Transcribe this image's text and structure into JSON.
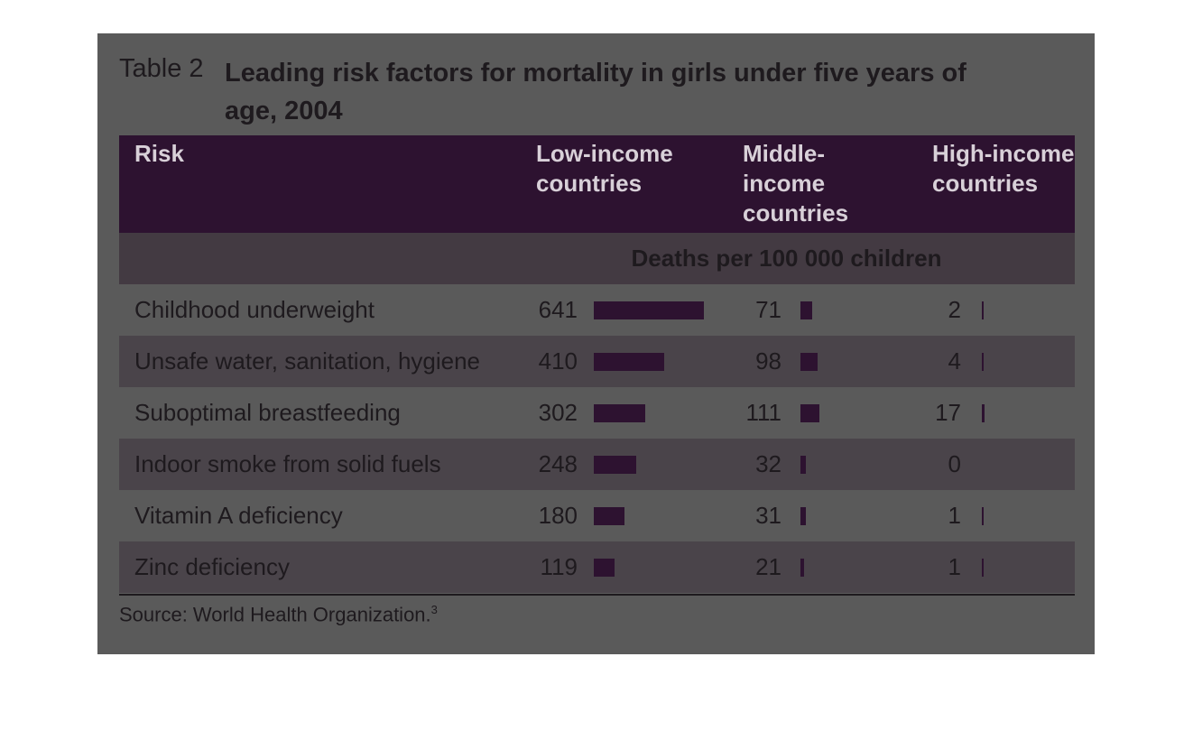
{
  "title": {
    "label": "Table 2",
    "text": "Leading risk factors for mortality in girls under five years of age, 2004"
  },
  "table": {
    "columns": [
      "Risk",
      "Low-income countries",
      "Middle-income countries",
      "High-income countries"
    ],
    "unit": "Deaths per 100 000 children",
    "rows": [
      [
        "Childhood underweight",
        641,
        71,
        2
      ],
      [
        "Unsafe water, sanitation, hygiene",
        410,
        98,
        4
      ],
      [
        "Suboptimal breastfeeding",
        302,
        111,
        17
      ],
      [
        "Indoor smoke from solid fuels",
        248,
        32,
        0
      ],
      [
        "Vitamin A deficiency",
        180,
        31,
        1
      ],
      [
        "Zinc deficiency",
        119,
        21,
        1
      ]
    ]
  },
  "source": {
    "text": "Source: World Health Organization.",
    "note": "3"
  }
}
